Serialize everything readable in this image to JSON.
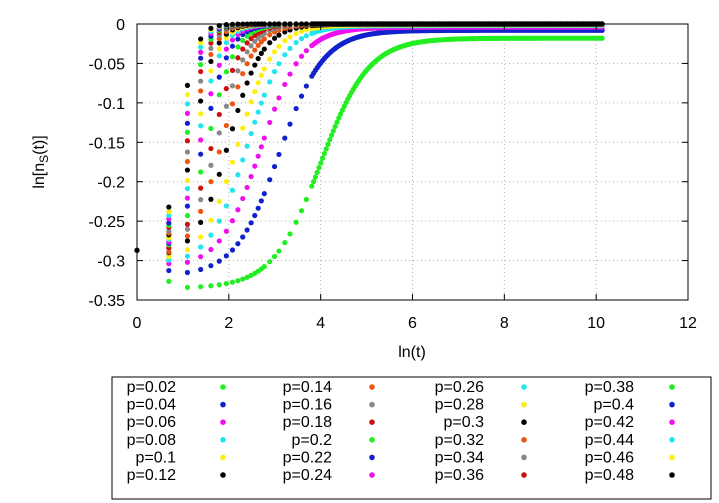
{
  "chart_data": {
    "type": "scatter",
    "xlabel": "ln(t)",
    "ylabel_main": "ln[n",
    "ylabel_sub": "S",
    "ylabel_tail": "(t)]",
    "xlim": [
      0,
      12
    ],
    "ylim": [
      -0.35,
      0
    ],
    "xticks": [
      0,
      2,
      4,
      6,
      8,
      10,
      12
    ],
    "xtick_labels": [
      "0",
      "2",
      "4",
      "6",
      "8",
      "10",
      "12"
    ],
    "yticks": [
      0,
      -0.05,
      -0.1,
      -0.15,
      -0.2,
      -0.25,
      -0.3,
      -0.35
    ],
    "ytick_labels": [
      "0",
      "-0.05",
      "-0.1",
      "-0.15",
      "-0.2",
      "-0.25",
      "-0.3",
      "-0.35"
    ],
    "grid": true,
    "legend_position": "below",
    "x_range_data": [
      0,
      10.13
    ],
    "series": [
      {
        "name": "p=0.02",
        "color": "#22ee22",
        "y0": -0.287,
        "ymin": -0.334,
        "x_min": 1.1,
        "x_half": 4.0,
        "steep": 2.3,
        "x_end": 10.13,
        "y_end": -0.018
      },
      {
        "name": "p=0.04",
        "color": "#1122cc",
        "y0": -0.287,
        "ymin": -0.316,
        "x_min": 1.0,
        "x_half": 3.1,
        "steep": 2.5,
        "x_end": 10.13,
        "y_end": -0.008
      },
      {
        "name": "p=0.06",
        "color": "#ee11ee",
        "y0": -0.287,
        "ymin": -0.305,
        "x_min": 0.9,
        "x_half": 2.7,
        "steep": 2.7,
        "x_end": 10.13,
        "y_end": -0.004
      },
      {
        "name": "p=0.08",
        "color": "#22e5ee",
        "y0": -0.287,
        "ymin": -0.3,
        "x_min": 0.85,
        "x_half": 2.4,
        "steep": 2.9,
        "x_end": 10.13,
        "y_end": -0.002
      },
      {
        "name": "p=0.1",
        "color": "#ffee11",
        "y0": -0.287,
        "ymin": -0.295,
        "x_min": 0.8,
        "x_half": 2.2,
        "steep": 3.1,
        "x_end": 10.13,
        "y_end": -0.001
      },
      {
        "name": "p=0.12",
        "color": "#000000",
        "y0": -0.287,
        "ymin": -0.29,
        "x_min": 0.7,
        "x_half": 2.0,
        "steep": 3.3,
        "x_end": 10.13,
        "y_end": 0
      },
      {
        "name": "p=0.14",
        "color": "#ee5511",
        "y0": -0.287,
        "ymin": -0.289,
        "x_min": 0.7,
        "x_half": 1.85,
        "steep": 3.5,
        "x_end": 10.13,
        "y_end": 0
      },
      {
        "name": "p=0.16",
        "color": "#888888",
        "y0": -0.287,
        "ymin": -0.287,
        "x_min": 0.6,
        "x_half": 1.75,
        "steep": 3.7,
        "x_end": 10.13,
        "y_end": 0
      },
      {
        "name": "p=0.18",
        "color": "#cc1111",
        "y0": -0.287,
        "ymin": -0.287,
        "x_min": 0.6,
        "x_half": 1.65,
        "steep": 3.9,
        "x_end": 10.13,
        "y_end": 0
      },
      {
        "name": "p=0.2",
        "color": "#22ee22",
        "y0": -0.287,
        "ymin": -0.287,
        "x_min": 0.5,
        "x_half": 1.55,
        "steep": 4.1,
        "x_end": 10.13,
        "y_end": 0
      },
      {
        "name": "p=0.22",
        "color": "#1122cc",
        "y0": -0.287,
        "ymin": -0.287,
        "x_min": 0.5,
        "x_half": 1.45,
        "steep": 4.3,
        "x_end": 10.13,
        "y_end": 0
      },
      {
        "name": "p=0.24",
        "color": "#ee11ee",
        "y0": -0.287,
        "ymin": -0.287,
        "x_min": 0.5,
        "x_half": 1.38,
        "steep": 4.5,
        "x_end": 10.13,
        "y_end": 0
      },
      {
        "name": "p=0.26",
        "color": "#22e5ee",
        "y0": -0.287,
        "ymin": -0.287,
        "x_min": 0.45,
        "x_half": 1.32,
        "steep": 4.7,
        "x_end": 10.13,
        "y_end": 0
      },
      {
        "name": "p=0.28",
        "color": "#ffee11",
        "y0": -0.287,
        "ymin": -0.287,
        "x_min": 0.45,
        "x_half": 1.27,
        "steep": 4.9,
        "x_end": 10.13,
        "y_end": 0
      },
      {
        "name": "p=0.3",
        "color": "#000000",
        "y0": -0.287,
        "ymin": -0.287,
        "x_min": 0.4,
        "x_half": 1.22,
        "steep": 5.1,
        "x_end": 10.13,
        "y_end": 0
      },
      {
        "name": "p=0.32",
        "color": "#ee5511",
        "y0": -0.287,
        "ymin": -0.287,
        "x_min": 0.4,
        "x_half": 1.18,
        "steep": 5.3,
        "x_end": 10.13,
        "y_end": 0
      },
      {
        "name": "p=0.34",
        "color": "#888888",
        "y0": -0.287,
        "ymin": -0.287,
        "x_min": 0.4,
        "x_half": 1.14,
        "steep": 5.5,
        "x_end": 10.13,
        "y_end": 0
      },
      {
        "name": "p=0.36",
        "color": "#cc1111",
        "y0": -0.287,
        "ymin": -0.287,
        "x_min": 0.35,
        "x_half": 1.1,
        "steep": 5.7,
        "x_end": 10.13,
        "y_end": 0
      },
      {
        "name": "p=0.38",
        "color": "#22ee22",
        "y0": -0.287,
        "ymin": -0.287,
        "x_min": 0.35,
        "x_half": 1.07,
        "steep": 5.9,
        "x_end": 10.13,
        "y_end": 0
      },
      {
        "name": "p=0.4",
        "color": "#1122cc",
        "y0": -0.287,
        "ymin": -0.287,
        "x_min": 0.35,
        "x_half": 1.04,
        "steep": 6.1,
        "x_end": 10.13,
        "y_end": 0
      },
      {
        "name": "p=0.42",
        "color": "#ee11ee",
        "y0": -0.287,
        "ymin": -0.287,
        "x_min": 0.3,
        "x_half": 1.01,
        "steep": 6.3,
        "x_end": 10.13,
        "y_end": 0
      },
      {
        "name": "p=0.44",
        "color": "#22e5ee",
        "y0": -0.287,
        "ymin": -0.287,
        "x_min": 0.3,
        "x_half": 0.98,
        "steep": 6.5,
        "x_end": 10.13,
        "y_end": 0
      },
      {
        "name": "p=0.46",
        "color": "#ffee11",
        "y0": -0.287,
        "ymin": -0.287,
        "x_min": 0.3,
        "x_half": 0.95,
        "steep": 6.7,
        "x_end": 10.13,
        "y_end": 0
      },
      {
        "name": "p=0.48",
        "color": "#000000",
        "y0": -0.287,
        "ymin": -0.287,
        "x_min": 0.3,
        "x_half": 0.92,
        "steep": 6.9,
        "x_end": 10.13,
        "y_end": 0
      }
    ]
  }
}
